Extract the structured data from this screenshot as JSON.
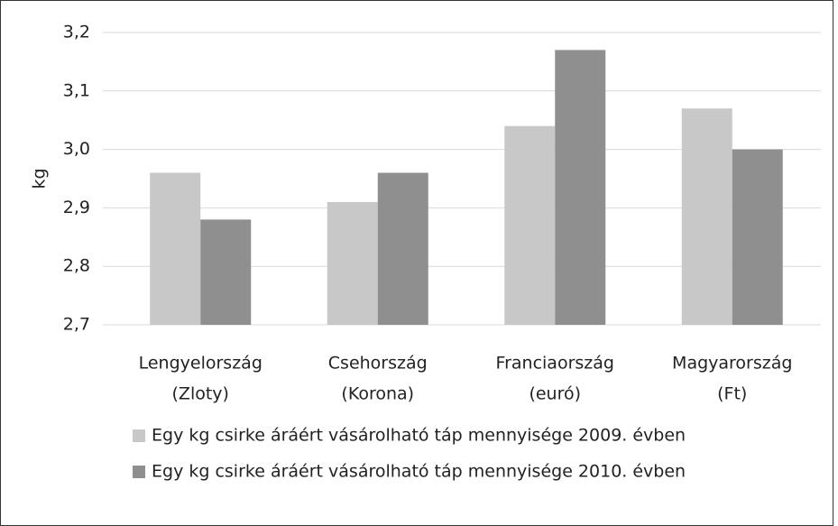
{
  "chart_data": {
    "type": "bar",
    "y_label": "kg",
    "categories": [
      [
        "Lengyelország",
        "(Zloty)"
      ],
      [
        "Csehország",
        "(Korona)"
      ],
      [
        "Franciaország",
        "(euró)"
      ],
      [
        "Magyarország",
        "(Ft)"
      ]
    ],
    "series": [
      {
        "name": "Egy kg csirke áráért vásárolható táp mennyisége 2009. évben",
        "color": "#c8c8c8",
        "values": [
          2.96,
          2.91,
          3.04,
          3.07
        ]
      },
      {
        "name": "Egy kg csirke áráért vásárolható táp mennyisége 2010. évben",
        "color": "#8f8f8f",
        "values": [
          2.88,
          2.96,
          3.17,
          3.0
        ]
      }
    ],
    "ylim": [
      2.7,
      3.2
    ],
    "yticks": [
      {
        "value": 2.7,
        "label": "2,7"
      },
      {
        "value": 2.8,
        "label": "2,8"
      },
      {
        "value": 2.9,
        "label": "2,9"
      },
      {
        "value": 3.0,
        "label": "3,0"
      },
      {
        "value": 3.1,
        "label": "3,1"
      },
      {
        "value": 3.2,
        "label": "3,2"
      }
    ],
    "grid": true,
    "legend": "bottom"
  }
}
